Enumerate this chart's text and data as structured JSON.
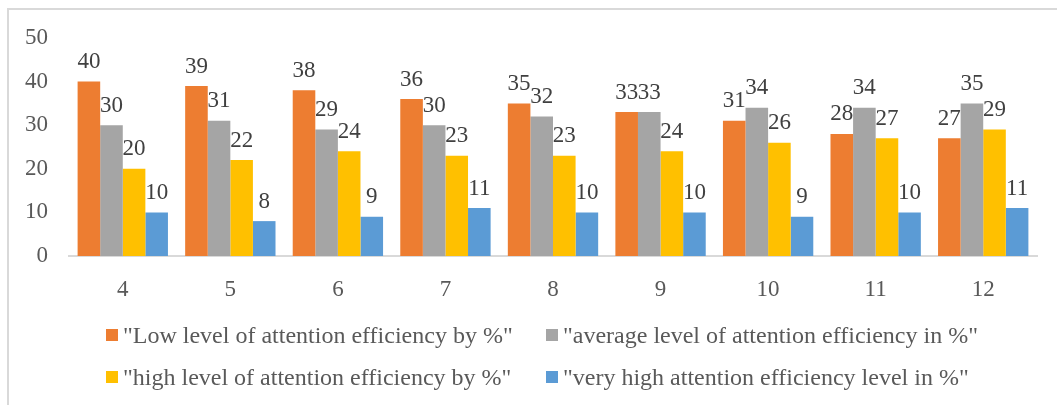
{
  "chart_data": {
    "type": "bar",
    "categories": [
      "4",
      "5",
      "6",
      "7",
      "8",
      "9",
      "10",
      "11",
      "12"
    ],
    "series": [
      {
        "name": "\"Low level of attention efficiency by %\"",
        "color": "#ed7d31",
        "values": [
          40,
          39,
          38,
          36,
          35,
          33,
          31,
          28,
          27
        ]
      },
      {
        "name": "\"average level of attention efficiency in %\"",
        "color": "#a5a5a5",
        "values": [
          30,
          31,
          29,
          30,
          32,
          33,
          34,
          34,
          35
        ]
      },
      {
        "name": "\"high level of attention efficiency by %\"",
        "color": "#ffc000",
        "values": [
          20,
          22,
          24,
          23,
          23,
          24,
          26,
          27,
          29
        ]
      },
      {
        "name": "\"very high attention efficiency level in %\"",
        "color": "#5b9bd5",
        "values": [
          10,
          8,
          9,
          11,
          10,
          10,
          9,
          10,
          11
        ]
      }
    ],
    "ylim": [
      0,
      50
    ],
    "yticks": [
      0,
      10,
      20,
      30,
      40,
      50
    ],
    "legend": "bottom",
    "data_labels": true
  }
}
